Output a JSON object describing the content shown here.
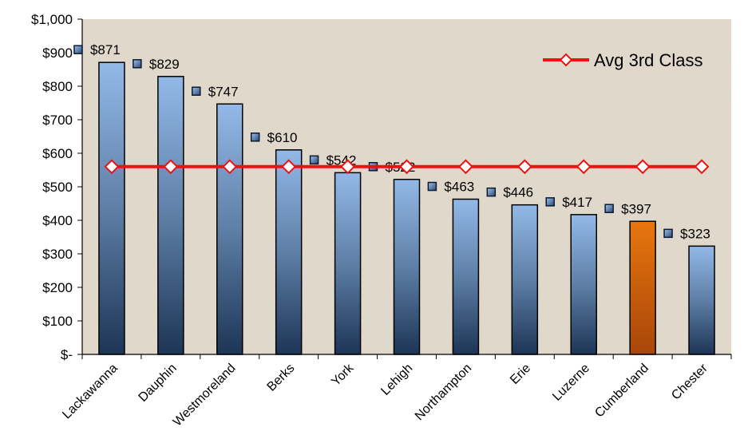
{
  "chart_data": {
    "type": "bar",
    "title": "",
    "xlabel": "",
    "ylabel": "",
    "ylim": [
      0,
      1000
    ],
    "yticks": [
      0,
      100,
      200,
      300,
      400,
      500,
      600,
      700,
      800,
      900,
      1000
    ],
    "ytick_labels": [
      "$-",
      "$100",
      "$200",
      "$300",
      "$400",
      "$500",
      "$600",
      "$700",
      "$800",
      "$900",
      "$1,000"
    ],
    "grid": false,
    "legend_position": "top-right",
    "categories": [
      "Lackawanna",
      "Dauphin",
      "Westmoreland",
      "Berks",
      "York",
      "Lehigh",
      "Northampton",
      "Erie",
      "Luzerne",
      "Cumberland",
      "Chester"
    ],
    "series": [
      {
        "type": "bar",
        "values": [
          871,
          829,
          747,
          610,
          542,
          522,
          463,
          446,
          417,
          397,
          323
        ],
        "labels": [
          "$871",
          "$829",
          "$747",
          "$610",
          "$542",
          "$522",
          "$463",
          "$446",
          "$417",
          "$397",
          "$323"
        ],
        "color": "#8fb4e3",
        "highlight_index": 9,
        "highlight_color": "#e07010"
      },
      {
        "type": "line",
        "name": "Avg 3rd Class",
        "values": [
          560,
          560,
          560,
          560,
          560,
          560,
          560,
          560,
          560,
          560,
          560
        ],
        "color": "#ee1111",
        "marker": "diamond"
      }
    ]
  }
}
